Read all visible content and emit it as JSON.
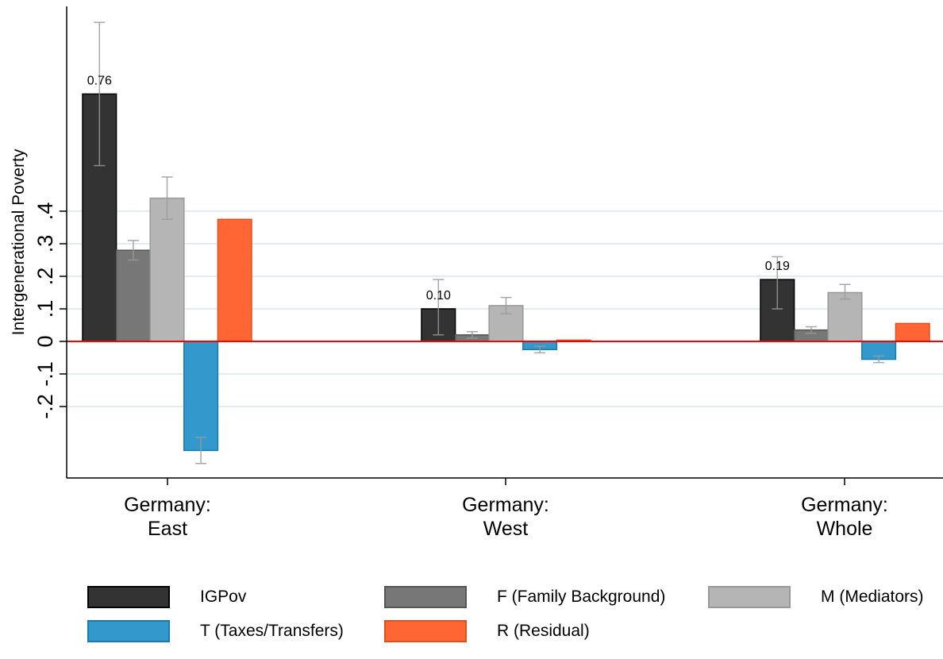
{
  "chart_data": {
    "type": "bar",
    "ylabel": "Intergenerational Poverty",
    "yticks": [
      "-.2",
      "-.1",
      "0",
      ".1",
      ".2",
      ".3",
      ".4"
    ],
    "ytick_values": [
      -0.2,
      -0.1,
      0,
      0.1,
      0.2,
      0.3,
      0.4
    ],
    "ylim": [
      -0.42,
      1.03
    ],
    "categories": [
      {
        "line1": "Germany:",
        "line2": "East"
      },
      {
        "line1": "Germany:",
        "line2": "West"
      },
      {
        "line1": "Germany:",
        "line2": "Whole"
      }
    ],
    "series": [
      {
        "name": "IGPov",
        "color": "#333333",
        "stroke": "#000000",
        "values": [
          0.76,
          0.1,
          0.19
        ],
        "ci": [
          [
            0.54,
            0.98
          ],
          [
            0.02,
            0.19
          ],
          [
            0.1,
            0.26
          ]
        ],
        "labels": [
          "0.76",
          "0.10",
          "0.19"
        ]
      },
      {
        "name": "F (Family Background)",
        "color": "#777777",
        "stroke": "#555555",
        "values": [
          0.28,
          0.02,
          0.035
        ],
        "ci": [
          [
            0.25,
            0.31
          ],
          [
            0.01,
            0.03
          ],
          [
            0.025,
            0.045
          ]
        ]
      },
      {
        "name": "M (Mediators)",
        "color": "#b5b5b5",
        "stroke": "#999999",
        "values": [
          0.44,
          0.11,
          0.15
        ],
        "ci": [
          [
            0.375,
            0.505
          ],
          [
            0.085,
            0.135
          ],
          [
            0.13,
            0.175
          ]
        ]
      },
      {
        "name": "T (Taxes/Transfers)",
        "color": "#3399cc",
        "stroke": "#1a7aaa",
        "values": [
          -0.335,
          -0.025,
          -0.055
        ],
        "ci": [
          [
            -0.375,
            -0.295
          ],
          [
            -0.035,
            -0.015
          ],
          [
            -0.065,
            -0.045
          ]
        ]
      },
      {
        "name": "R (Residual)",
        "color": "#ff6633",
        "stroke": "#e0501e",
        "values": [
          0.375,
          0.004,
          0.055
        ],
        "ci": null
      }
    ],
    "grid": true,
    "zero_line_color": "#ff0000",
    "legend_position": "bottom"
  }
}
